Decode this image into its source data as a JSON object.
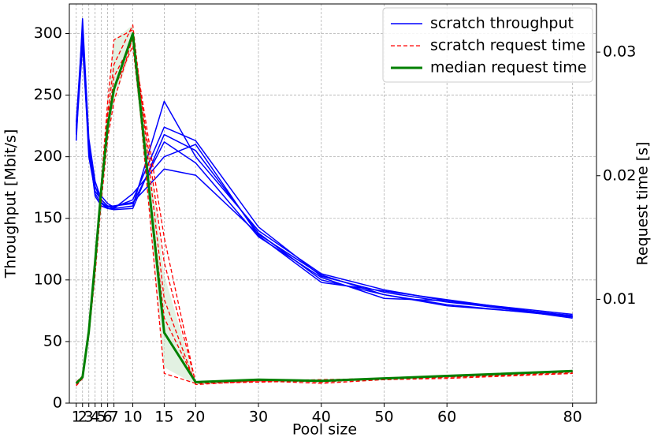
{
  "chart_data": {
    "type": "line",
    "x_label": "Pool size",
    "y_label": "Throughput [Mbit/s]",
    "y2_label": "Request time [s]",
    "x": [
      1,
      2,
      3,
      4,
      5,
      6,
      7,
      10,
      15,
      20,
      30,
      40,
      50,
      60,
      80
    ],
    "xlim": [
      -0.1,
      83.8
    ],
    "xticks": [
      1,
      2,
      3,
      4,
      5,
      6,
      7,
      10,
      15,
      20,
      30,
      40,
      50,
      60,
      80
    ],
    "ylim": [
      0,
      324
    ],
    "yticks": [
      0,
      50,
      100,
      150,
      200,
      250,
      300
    ],
    "y2lim": [
      0.0016,
      0.0339
    ],
    "y2ticks": [
      0.01,
      0.02,
      0.03
    ],
    "grid": true,
    "legend": "upper right",
    "band": {
      "color": "#cfe8cf",
      "axis": "y2",
      "lower": [
        0.003,
        0.0036,
        0.007,
        0.012,
        0.018,
        0.023,
        0.026,
        0.0305,
        0.0045,
        0.0031,
        0.0033,
        0.0032,
        0.0035,
        0.0036,
        0.004
      ],
      "upper": [
        0.0033,
        0.0038,
        0.0078,
        0.0135,
        0.0195,
        0.026,
        0.031,
        0.0322,
        0.012,
        0.0033,
        0.0035,
        0.0035,
        0.0036,
        0.0038,
        0.0042
      ]
    },
    "groups": [
      {
        "name": "scratch throughput",
        "color": "#0000ff",
        "style": "solid",
        "width": 1.5,
        "axis": "y",
        "runs": [
          [
            213,
            312,
            215,
            180,
            165,
            160,
            158,
            160,
            245,
            200,
            140,
            105,
            92,
            83,
            72
          ],
          [
            228,
            305,
            210,
            175,
            168,
            162,
            159,
            165,
            224,
            213,
            143,
            103,
            90,
            82,
            71
          ],
          [
            220,
            300,
            205,
            170,
            162,
            158,
            157,
            158,
            218,
            205,
            138,
            100,
            88,
            80,
            70
          ],
          [
            225,
            298,
            200,
            172,
            165,
            160,
            160,
            162,
            212,
            195,
            135,
            102,
            85,
            83,
            69
          ],
          [
            218,
            290,
            208,
            168,
            160,
            158,
            158,
            170,
            200,
            210,
            136,
            98,
            91,
            84,
            70
          ],
          [
            222,
            303,
            212,
            176,
            163,
            159,
            160,
            163,
            190,
            185,
            137,
            104,
            88,
            79,
            71
          ]
        ]
      },
      {
        "name": "scratch request time",
        "color": "#ff0000",
        "style": "dashed",
        "width": 1.3,
        "axis": "y2",
        "runs": [
          [
            0.0031,
            0.0036,
            0.0078,
            0.0135,
            0.0195,
            0.026,
            0.031,
            0.0318,
            0.004,
            0.0032,
            0.0034,
            0.0032,
            0.0035,
            0.0036,
            0.004
          ],
          [
            0.0032,
            0.0037,
            0.0072,
            0.0128,
            0.0185,
            0.025,
            0.029,
            0.0322,
            0.01,
            0.0031,
            0.0034,
            0.0034,
            0.0036,
            0.0038,
            0.0041
          ],
          [
            0.0033,
            0.0038,
            0.007,
            0.012,
            0.018,
            0.023,
            0.026,
            0.0312,
            0.013,
            0.0033,
            0.0035,
            0.0033,
            0.0036,
            0.0037,
            0.0041
          ],
          [
            0.003,
            0.0036,
            0.0075,
            0.013,
            0.0195,
            0.024,
            0.028,
            0.031,
            0.015,
            0.0032,
            0.0033,
            0.0034,
            0.0035,
            0.0037,
            0.004
          ],
          [
            0.0031,
            0.0037,
            0.0073,
            0.0125,
            0.019,
            0.025,
            0.027,
            0.0305,
            0.0085,
            0.0033,
            0.0034,
            0.0035,
            0.0036,
            0.0038,
            0.0042
          ]
        ]
      },
      {
        "name": "median request time",
        "color": "#008000",
        "style": "solid",
        "width": 3,
        "axis": "y2",
        "runs": [
          [
            0.0032,
            0.0037,
            0.0074,
            0.013,
            0.019,
            0.024,
            0.027,
            0.0315,
            0.0073,
            0.0033,
            0.0035,
            0.0034,
            0.0036,
            0.0038,
            0.0042
          ]
        ]
      }
    ]
  }
}
